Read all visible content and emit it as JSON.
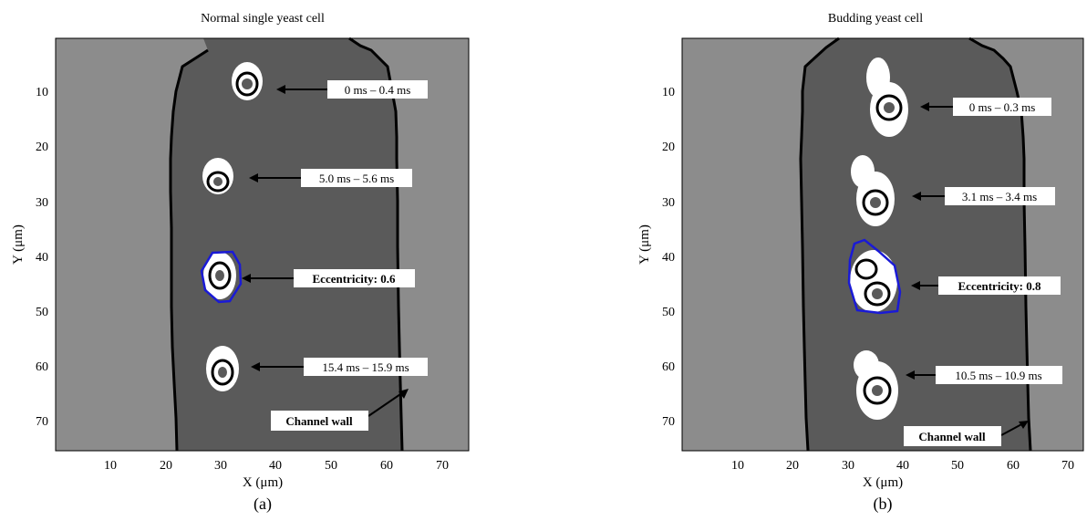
{
  "figure": {
    "panels": [
      {
        "id": "a",
        "caption": "(a)",
        "title": "Normal single yeast cell",
        "xlabel": "X (μm)",
        "ylabel": "Y (μm)",
        "x_ticks": [
          "10",
          "20",
          "30",
          "40",
          "50",
          "60",
          "70"
        ],
        "y_ticks": [
          "10",
          "20",
          "30",
          "40",
          "50",
          "60",
          "70"
        ],
        "annotations": [
          {
            "label": "0 ms – 0.4 ms",
            "bold": false
          },
          {
            "label": "5.0 ms – 5.6 ms",
            "bold": false
          },
          {
            "label": "Eccentricity: 0.6",
            "bold": true
          },
          {
            "label": "15.4 ms – 15.9 ms",
            "bold": false
          },
          {
            "label": "Channel wall",
            "bold": true
          }
        ]
      },
      {
        "id": "b",
        "caption": "(b)",
        "title": "Budding yeast cell",
        "xlabel": "X (μm)",
        "ylabel": "Y (μm)",
        "x_ticks": [
          "10",
          "20",
          "30",
          "40",
          "50",
          "60",
          "70"
        ],
        "y_ticks": [
          "10",
          "20",
          "30",
          "40",
          "50",
          "60",
          "70"
        ],
        "annotations": [
          {
            "label": "0 ms – 0.3 ms",
            "bold": false
          },
          {
            "label": "3.1 ms – 3.4 ms",
            "bold": false
          },
          {
            "label": "Eccentricity: 0.8",
            "bold": true
          },
          {
            "label": "10.5 ms – 10.9 ms",
            "bold": false
          },
          {
            "label": "Channel wall",
            "bold": true
          }
        ]
      }
    ],
    "colors": {
      "outside": "#8c8c8c",
      "channel": "#5a5a5a",
      "wall": "#000000",
      "cell_white": "#ffffff",
      "cell_dark": "#000000",
      "contour": "#1a1ad6",
      "arrow": "#000000",
      "label_box": "#ffffff"
    }
  },
  "chart_data": [
    {
      "type": "heatmap",
      "title": "Normal single yeast cell",
      "xlabel": "X (μm)",
      "ylabel": "Y (μm)",
      "xlim": [
        0,
        75
      ],
      "ylim": [
        75,
        0
      ],
      "y_axis_reversed": true,
      "channel_wall_left": [
        [
          2,
          27.5
        ],
        [
          5,
          26.5
        ],
        [
          9,
          25
        ],
        [
          13,
          23
        ],
        [
          16,
          21.8
        ],
        [
          20,
          21.7
        ],
        [
          40,
          22
        ],
        [
          60,
          22.5
        ],
        [
          70,
          23
        ],
        [
          75,
          23.3
        ]
      ],
      "channel_wall_right": [
        [
          2,
          48.5
        ],
        [
          5,
          50.5
        ],
        [
          9,
          54
        ],
        [
          13,
          60
        ],
        [
          16,
          61.5
        ],
        [
          20,
          61.8
        ],
        [
          40,
          62
        ],
        [
          60,
          62.5
        ],
        [
          70,
          63
        ],
        [
          75,
          63.2
        ]
      ],
      "cells": [
        {
          "x": 31,
          "y": 8,
          "time": "0 ms – 0.4 ms"
        },
        {
          "x": 29,
          "y": 25,
          "time": "5.0 ms – 5.6 ms"
        },
        {
          "x": 29,
          "y": 43,
          "eccentricity": 0.6
        },
        {
          "x": 30,
          "y": 60,
          "time": "15.4 ms – 15.9 ms"
        }
      ],
      "contour": [
        [
          28,
          40
        ],
        [
          32,
          39
        ],
        [
          34,
          41
        ],
        [
          34,
          45
        ],
        [
          31,
          48
        ],
        [
          28,
          48
        ],
        [
          26,
          46
        ],
        [
          26,
          42
        ]
      ]
    },
    {
      "type": "heatmap",
      "title": "Budding yeast cell",
      "xlabel": "X (μm)",
      "ylabel": "Y (μm)",
      "xlim": [
        0,
        75
      ],
      "ylim": [
        75,
        0
      ],
      "y_axis_reversed": true,
      "channel_wall_left": [
        [
          2,
          27.5
        ],
        [
          5,
          26.5
        ],
        [
          9,
          25
        ],
        [
          13,
          23
        ],
        [
          16,
          21.8
        ],
        [
          20,
          21.7
        ],
        [
          40,
          22
        ],
        [
          60,
          22.5
        ],
        [
          70,
          23
        ],
        [
          75,
          23.3
        ]
      ],
      "channel_wall_right": [
        [
          2,
          48.5
        ],
        [
          5,
          50.5
        ],
        [
          9,
          54
        ],
        [
          13,
          60
        ],
        [
          16,
          61.5
        ],
        [
          20,
          61.8
        ],
        [
          40,
          62
        ],
        [
          60,
          62.5
        ],
        [
          70,
          63
        ],
        [
          75,
          63.2
        ]
      ],
      "cells": [
        {
          "x": 34,
          "y": 11,
          "time": "0 ms – 0.3 ms"
        },
        {
          "x": 34,
          "y": 29,
          "time": "3.1 ms – 3.4 ms"
        },
        {
          "x": 35,
          "y": 44,
          "eccentricity": 0.8
        },
        {
          "x": 35,
          "y": 64,
          "time": "10.5 ms – 10.9 ms"
        }
      ],
      "contour": [
        [
          31,
          38
        ],
        [
          33,
          37
        ],
        [
          36,
          39
        ],
        [
          39,
          41
        ],
        [
          40,
          46
        ],
        [
          39,
          50
        ],
        [
          34,
          50
        ],
        [
          31,
          49
        ],
        [
          30,
          44
        ],
        [
          30,
          40
        ]
      ]
    }
  ]
}
